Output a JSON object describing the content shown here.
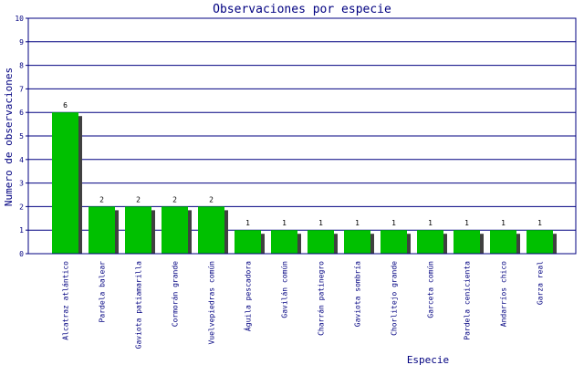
{
  "chart_data": {
    "type": "bar",
    "title": "Observaciones por especie",
    "xlabel": "Especie",
    "ylabel": "Numero de observaciones",
    "ylim": [
      0,
      10
    ],
    "yticks": [
      0,
      1,
      2,
      3,
      4,
      5,
      6,
      7,
      8,
      9,
      10
    ],
    "grid": true,
    "categories": [
      "Alcatraz atlántico",
      "Pardela balear",
      "Gaviota patiamarilla",
      "Cormorán grande",
      "Vuelvepiedras común",
      "Águila pescadora",
      "Gavilán común",
      "Charrán patinegro",
      "Gaviota sombría",
      "Chorlitejo grande",
      "Garceta común",
      "Pardela cenicienta",
      "Andarríos chico",
      "Garza real"
    ],
    "values": [
      6,
      2,
      2,
      2,
      2,
      1,
      1,
      1,
      1,
      1,
      1,
      1,
      1,
      1
    ],
    "colors": {
      "bar": "#00c000",
      "shadow": "#404040",
      "grid": "#000080",
      "frame": "#000080",
      "text": "#000080"
    }
  }
}
